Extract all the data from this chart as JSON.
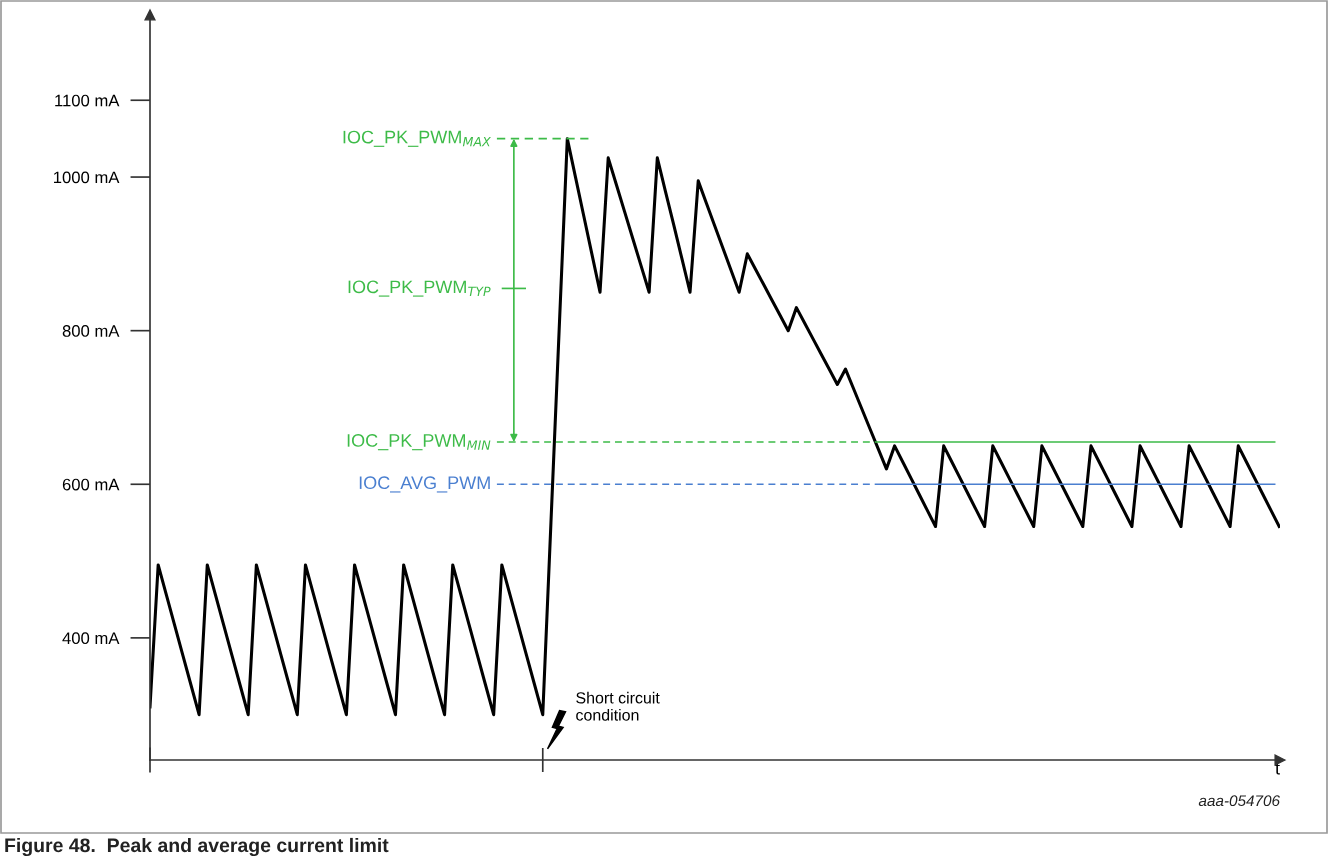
{
  "chart_data": {
    "type": "line",
    "title": "Figure 48.  Peak and average current limit",
    "xlabel": "t",
    "categories": [
      null,
      null,
      null,
      null,
      null,
      null,
      null,
      null,
      null,
      null,
      null,
      null,
      null,
      null,
      null,
      null,
      null,
      null,
      null,
      null,
      null,
      null,
      null,
      null,
      null,
      null,
      null,
      null,
      null,
      null,
      null,
      null,
      null,
      null,
      null,
      null,
      null,
      null,
      null,
      null,
      null,
      null,
      null,
      null,
      null,
      null,
      null,
      null,
      null,
      null,
      null,
      null,
      null,
      null,
      null,
      null,
      null,
      null,
      null,
      null,
      null,
      null,
      null,
      null,
      null,
      null,
      null,
      null,
      null,
      null,
      null,
      null,
      null,
      null,
      null,
      null,
      null,
      null,
      null,
      null,
      null,
      null,
      null,
      null,
      null,
      null,
      null,
      null,
      null,
      null,
      null,
      null,
      null,
      null,
      null,
      null,
      null,
      null,
      null,
      null,
      null,
      null,
      null,
      null,
      null,
      null,
      null,
      null,
      null,
      null,
      null,
      null,
      null,
      null,
      null,
      null,
      null,
      null,
      null,
      null,
      null,
      null,
      null,
      null,
      null,
      null,
      null,
      null,
      null,
      null,
      null,
      null,
      null,
      null,
      null,
      null,
      null,
      null,
      null
    ],
    "series": [
      {
        "color": "#000000",
        "values": [
          310,
          495,
          456,
          417,
          378,
          339,
          300,
          495,
          456,
          417,
          378,
          339,
          300,
          495,
          456,
          417,
          378,
          339,
          300,
          495,
          456,
          417,
          378,
          339,
          300,
          495,
          456,
          417,
          378,
          339,
          300,
          495,
          456,
          417,
          378,
          339,
          300,
          495,
          456,
          417,
          378,
          339,
          300,
          495,
          456,
          417,
          378,
          339,
          300,
          550,
          800,
          1050,
          1000,
          950,
          900,
          850,
          1025,
          990,
          955,
          920,
          885,
          850,
          1025,
          981,
          938,
          894,
          850,
          995,
          966,
          937,
          908,
          879,
          850,
          900,
          880,
          860,
          840,
          820,
          800,
          830,
          810,
          790,
          770,
          750,
          730,
          750,
          724,
          698,
          672,
          646,
          620,
          650,
          629,
          608,
          587,
          566,
          545,
          650,
          629,
          608,
          587,
          566,
          545,
          650,
          629,
          608,
          587,
          566,
          545,
          650,
          629,
          608,
          587,
          566,
          545,
          650,
          629,
          608,
          587,
          566,
          545,
          650,
          629,
          608,
          587,
          566,
          545,
          650,
          629,
          608,
          587,
          566,
          545,
          650,
          629,
          608,
          587,
          566,
          545
        ]
      }
    ],
    "ylim": [
      241,
      1211
    ],
    "yticks": [
      {
        "value": 400,
        "label": "400 mA"
      },
      {
        "value": 600,
        "label": "600 mA"
      },
      {
        "value": 800,
        "label": "800 mA"
      },
      {
        "value": 1000,
        "label": "1000 mA"
      },
      {
        "value": 1100,
        "label": "1100 mA"
      }
    ],
    "ref_lines": [
      {
        "axis": "y",
        "value": 1050,
        "label": "IOC_PK_PWM$_{MAX}$",
        "color": "#3dbb48",
        "line_style": "dashed"
      },
      {
        "axis": "y",
        "value": 855,
        "label": "IOC_PK_PWM$_{TYP}$",
        "color": "#3dbb48",
        "line_style": "solid"
      },
      {
        "axis": "y",
        "value": 655,
        "label": "IOC_PK_PWM$_{MIN}$",
        "color": "#3dbb48",
        "line_style": "dashed"
      },
      {
        "axis": "y",
        "value": 600,
        "label": "IOC_AVG_PWM",
        "color": "#4a7fd0",
        "line_style": "dashed"
      }
    ],
    "annotations": [
      "Short circuit\ncondition",
      "aaa-054706"
    ],
    "grid": false,
    "legend": false,
    "marker": "none",
    "line_style": "solid",
    "tick_labels": "y"
  }
}
